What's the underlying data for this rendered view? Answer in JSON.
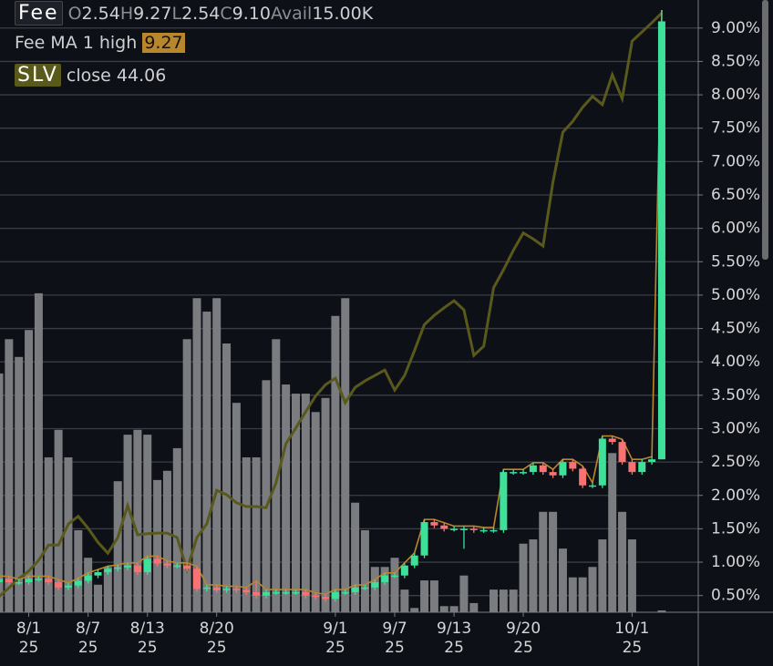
{
  "chart_data": {
    "type": "candlestick",
    "legend": {
      "symbol": "Fee",
      "ohlc": [
        {
          "key": "O",
          "value": "2.54"
        },
        {
          "key": "H",
          "value": "9.27"
        },
        {
          "key": "L",
          "value": "2.54"
        },
        {
          "key": "C",
          "value": "9.10"
        },
        {
          "key": "Avail",
          "value": "15.00K"
        }
      ],
      "ma_name": "Fee MA 1 high",
      "ma_value": "9.27",
      "slv_symbol": "SLV",
      "slv_field": "close",
      "slv_value": "44.06"
    },
    "categories": [
      null,
      null,
      null,
      "8/1",
      null,
      null,
      null,
      null,
      null,
      "8/7",
      null,
      null,
      null,
      null,
      null,
      "8/13",
      null,
      null,
      null,
      null,
      null,
      null,
      "8/20",
      null,
      null,
      null,
      null,
      null,
      null,
      null,
      null,
      null,
      null,
      null,
      "9/1",
      null,
      null,
      null,
      null,
      null,
      "9/7",
      null,
      null,
      null,
      null,
      null,
      "9/13",
      null,
      null,
      null,
      null,
      null,
      null,
      "9/20",
      null,
      null,
      null,
      null,
      null,
      null,
      null,
      null,
      null,
      null,
      "10/1",
      null,
      null,
      null
    ],
    "category_sublabels": [
      null,
      null,
      null,
      "25",
      null,
      null,
      null,
      null,
      null,
      "25",
      null,
      null,
      null,
      null,
      null,
      "25",
      null,
      null,
      null,
      null,
      null,
      null,
      "25",
      null,
      null,
      null,
      null,
      null,
      null,
      null,
      null,
      null,
      null,
      null,
      "25",
      null,
      null,
      null,
      null,
      null,
      "25",
      null,
      null,
      null,
      null,
      null,
      "25",
      null,
      null,
      null,
      null,
      null,
      null,
      "25",
      null,
      null,
      null,
      null,
      null,
      null,
      null,
      null,
      null,
      null,
      "25",
      null,
      null,
      null
    ],
    "open": [
      0.7,
      0.75,
      0.7,
      0.7,
      0.75,
      0.75,
      0.7,
      0.62,
      0.65,
      0.72,
      0.8,
      0.85,
      0.9,
      0.92,
      0.95,
      0.85,
      1.05,
      0.98,
      0.95,
      0.95,
      0.9,
      0.6,
      0.62,
      0.58,
      0.6,
      0.58,
      0.55,
      0.5,
      0.55,
      0.55,
      0.55,
      0.55,
      0.5,
      0.48,
      0.45,
      0.55,
      0.55,
      0.62,
      0.62,
      0.7,
      0.8,
      0.8,
      0.95,
      1.1,
      1.6,
      1.55,
      1.5,
      1.5,
      1.5,
      1.48,
      1.48,
      1.48,
      2.35,
      2.35,
      2.35,
      2.45,
      2.35,
      2.3,
      2.5,
      2.4,
      2.15,
      2.15,
      2.85,
      2.8,
      2.5,
      2.35,
      2.5,
      2.54
    ],
    "high": [
      0.79,
      0.79,
      0.74,
      0.79,
      0.79,
      0.79,
      0.74,
      0.69,
      0.76,
      0.84,
      0.89,
      0.94,
      0.96,
      0.99,
      0.99,
      1.09,
      1.09,
      1.02,
      0.99,
      0.99,
      0.94,
      0.66,
      0.66,
      0.64,
      0.64,
      0.62,
      0.72,
      0.59,
      0.59,
      0.59,
      0.59,
      0.59,
      0.54,
      0.52,
      0.59,
      0.59,
      0.66,
      0.66,
      0.74,
      0.84,
      0.84,
      0.99,
      1.14,
      1.64,
      1.64,
      1.59,
      1.54,
      1.54,
      1.54,
      1.52,
      1.52,
      2.39,
      2.39,
      2.39,
      2.49,
      2.49,
      2.39,
      2.54,
      2.54,
      2.44,
      2.19,
      2.89,
      2.89,
      2.84,
      2.54,
      2.54,
      2.58,
      9.27
    ],
    "low": [
      0.66,
      0.66,
      0.66,
      0.66,
      0.71,
      0.66,
      0.58,
      0.58,
      0.61,
      0.68,
      0.76,
      0.81,
      0.86,
      0.88,
      0.81,
      0.81,
      0.94,
      0.91,
      0.91,
      0.86,
      0.56,
      0.56,
      0.54,
      0.54,
      0.54,
      0.51,
      0.46,
      0.46,
      0.51,
      0.51,
      0.51,
      0.46,
      0.44,
      0.41,
      0.41,
      0.51,
      0.51,
      0.58,
      0.58,
      0.66,
      0.76,
      0.76,
      0.91,
      1.06,
      1.51,
      1.46,
      1.46,
      1.2,
      1.44,
      1.44,
      1.44,
      1.44,
      2.31,
      2.31,
      2.31,
      2.31,
      2.26,
      2.26,
      2.36,
      2.11,
      2.11,
      2.11,
      2.76,
      2.46,
      2.31,
      2.31,
      2.46,
      2.54
    ],
    "close": [
      0.75,
      0.7,
      0.7,
      0.75,
      0.75,
      0.7,
      0.62,
      0.65,
      0.72,
      0.8,
      0.85,
      0.9,
      0.92,
      0.95,
      0.85,
      1.05,
      0.98,
      0.95,
      0.95,
      0.9,
      0.6,
      0.62,
      0.58,
      0.6,
      0.58,
      0.55,
      0.5,
      0.55,
      0.55,
      0.55,
      0.55,
      0.5,
      0.48,
      0.45,
      0.55,
      0.55,
      0.62,
      0.62,
      0.7,
      0.8,
      0.8,
      0.95,
      1.1,
      1.6,
      1.55,
      1.5,
      1.5,
      1.5,
      1.48,
      1.48,
      1.48,
      2.35,
      2.35,
      2.35,
      2.45,
      2.35,
      2.3,
      2.5,
      2.4,
      2.15,
      2.15,
      2.85,
      2.8,
      2.5,
      2.35,
      2.5,
      2.54,
      9.1
    ],
    "volume": [
      39,
      44.6,
      41.7,
      46.1,
      52.1,
      25.3,
      29.8,
      25.3,
      13.4,
      8.9,
      4.5,
      7.4,
      21.4,
      29.0,
      29.8,
      29.0,
      21.6,
      23.1,
      26.8,
      44.6,
      51.3,
      49.1,
      51.3,
      43.9,
      34.2,
      25.3,
      25.3,
      37.9,
      44.6,
      37.2,
      35.7,
      35.7,
      32.7,
      35.0,
      48.4,
      51.3,
      17.9,
      13.4,
      7.4,
      7.4,
      8.9,
      3.7,
      0.7,
      5.2,
      5.2,
      1.0,
      1.0,
      6.0,
      1.5,
      0,
      3.7,
      3.7,
      3.7,
      11.2,
      11.9,
      16.4,
      16.4,
      10.4,
      5.7,
      5.7,
      7.4,
      11.9,
      26.0,
      16.4,
      11.9,
      0,
      0,
      0.3
    ],
    "slv": {
      "name": "SLV",
      "color": "#59591c",
      "axis": "y2",
      "values": [
        33.29,
        33.45,
        33.62,
        33.76,
        33.96,
        34.24,
        34.24,
        34.63,
        34.77,
        34.55,
        34.29,
        34.09,
        34.38,
        34.97,
        34.43,
        34.45,
        34.46,
        34.46,
        34.38,
        33.79,
        34.38,
        34.63,
        35.25,
        35.17,
        35.02,
        34.95,
        34.95,
        34.93,
        35.39,
        36.11,
        36.4,
        36.7,
        36.99,
        37.2,
        37.32,
        36.87,
        37.15,
        37.27,
        37.37,
        37.47,
        37.1,
        37.37,
        37.83,
        38.31,
        38.48,
        38.62,
        38.75,
        38.58,
        37.74,
        37.91,
        38.99,
        39.32,
        39.68,
        40.0,
        39.89,
        39.76,
        40.94,
        41.86,
        42.06,
        42.32,
        42.52,
        42.37,
        42.92,
        42.48,
        43.54,
        43.71,
        43.88,
        44.06
      ]
    },
    "up_color": "#3ee09a",
    "down_color": "#f87272",
    "ma_color": "#b8862b",
    "volume_color": "#7b7c80",
    "ylim": [
      0.25,
      9.42
    ],
    "y2lim": [
      33.0,
      44.3
    ],
    "volume_lim": [
      0,
      100
    ],
    "yticks": [
      {
        "value": 0.5,
        "label": "0.50%"
      },
      {
        "value": 1.0,
        "label": "1.00%"
      },
      {
        "value": 1.5,
        "label": "1.50%"
      },
      {
        "value": 2.0,
        "label": "2.00%"
      },
      {
        "value": 2.5,
        "label": "2.50%"
      },
      {
        "value": 3.0,
        "label": "3.00%"
      },
      {
        "value": 3.5,
        "label": "3.50%"
      },
      {
        "value": 4.0,
        "label": "4.00%"
      },
      {
        "value": 4.5,
        "label": "4.50%"
      },
      {
        "value": 5.0,
        "label": "5.00%"
      },
      {
        "value": 5.5,
        "label": "5.50%"
      },
      {
        "value": 6.0,
        "label": "6.00%"
      },
      {
        "value": 6.5,
        "label": "6.50%"
      },
      {
        "value": 7.0,
        "label": "7.00%"
      },
      {
        "value": 7.5,
        "label": "7.50%"
      },
      {
        "value": 8.0,
        "label": "8.00%"
      },
      {
        "value": 8.5,
        "label": "8.50%"
      },
      {
        "value": 9.0,
        "label": "9.00%"
      }
    ],
    "grid": true
  }
}
